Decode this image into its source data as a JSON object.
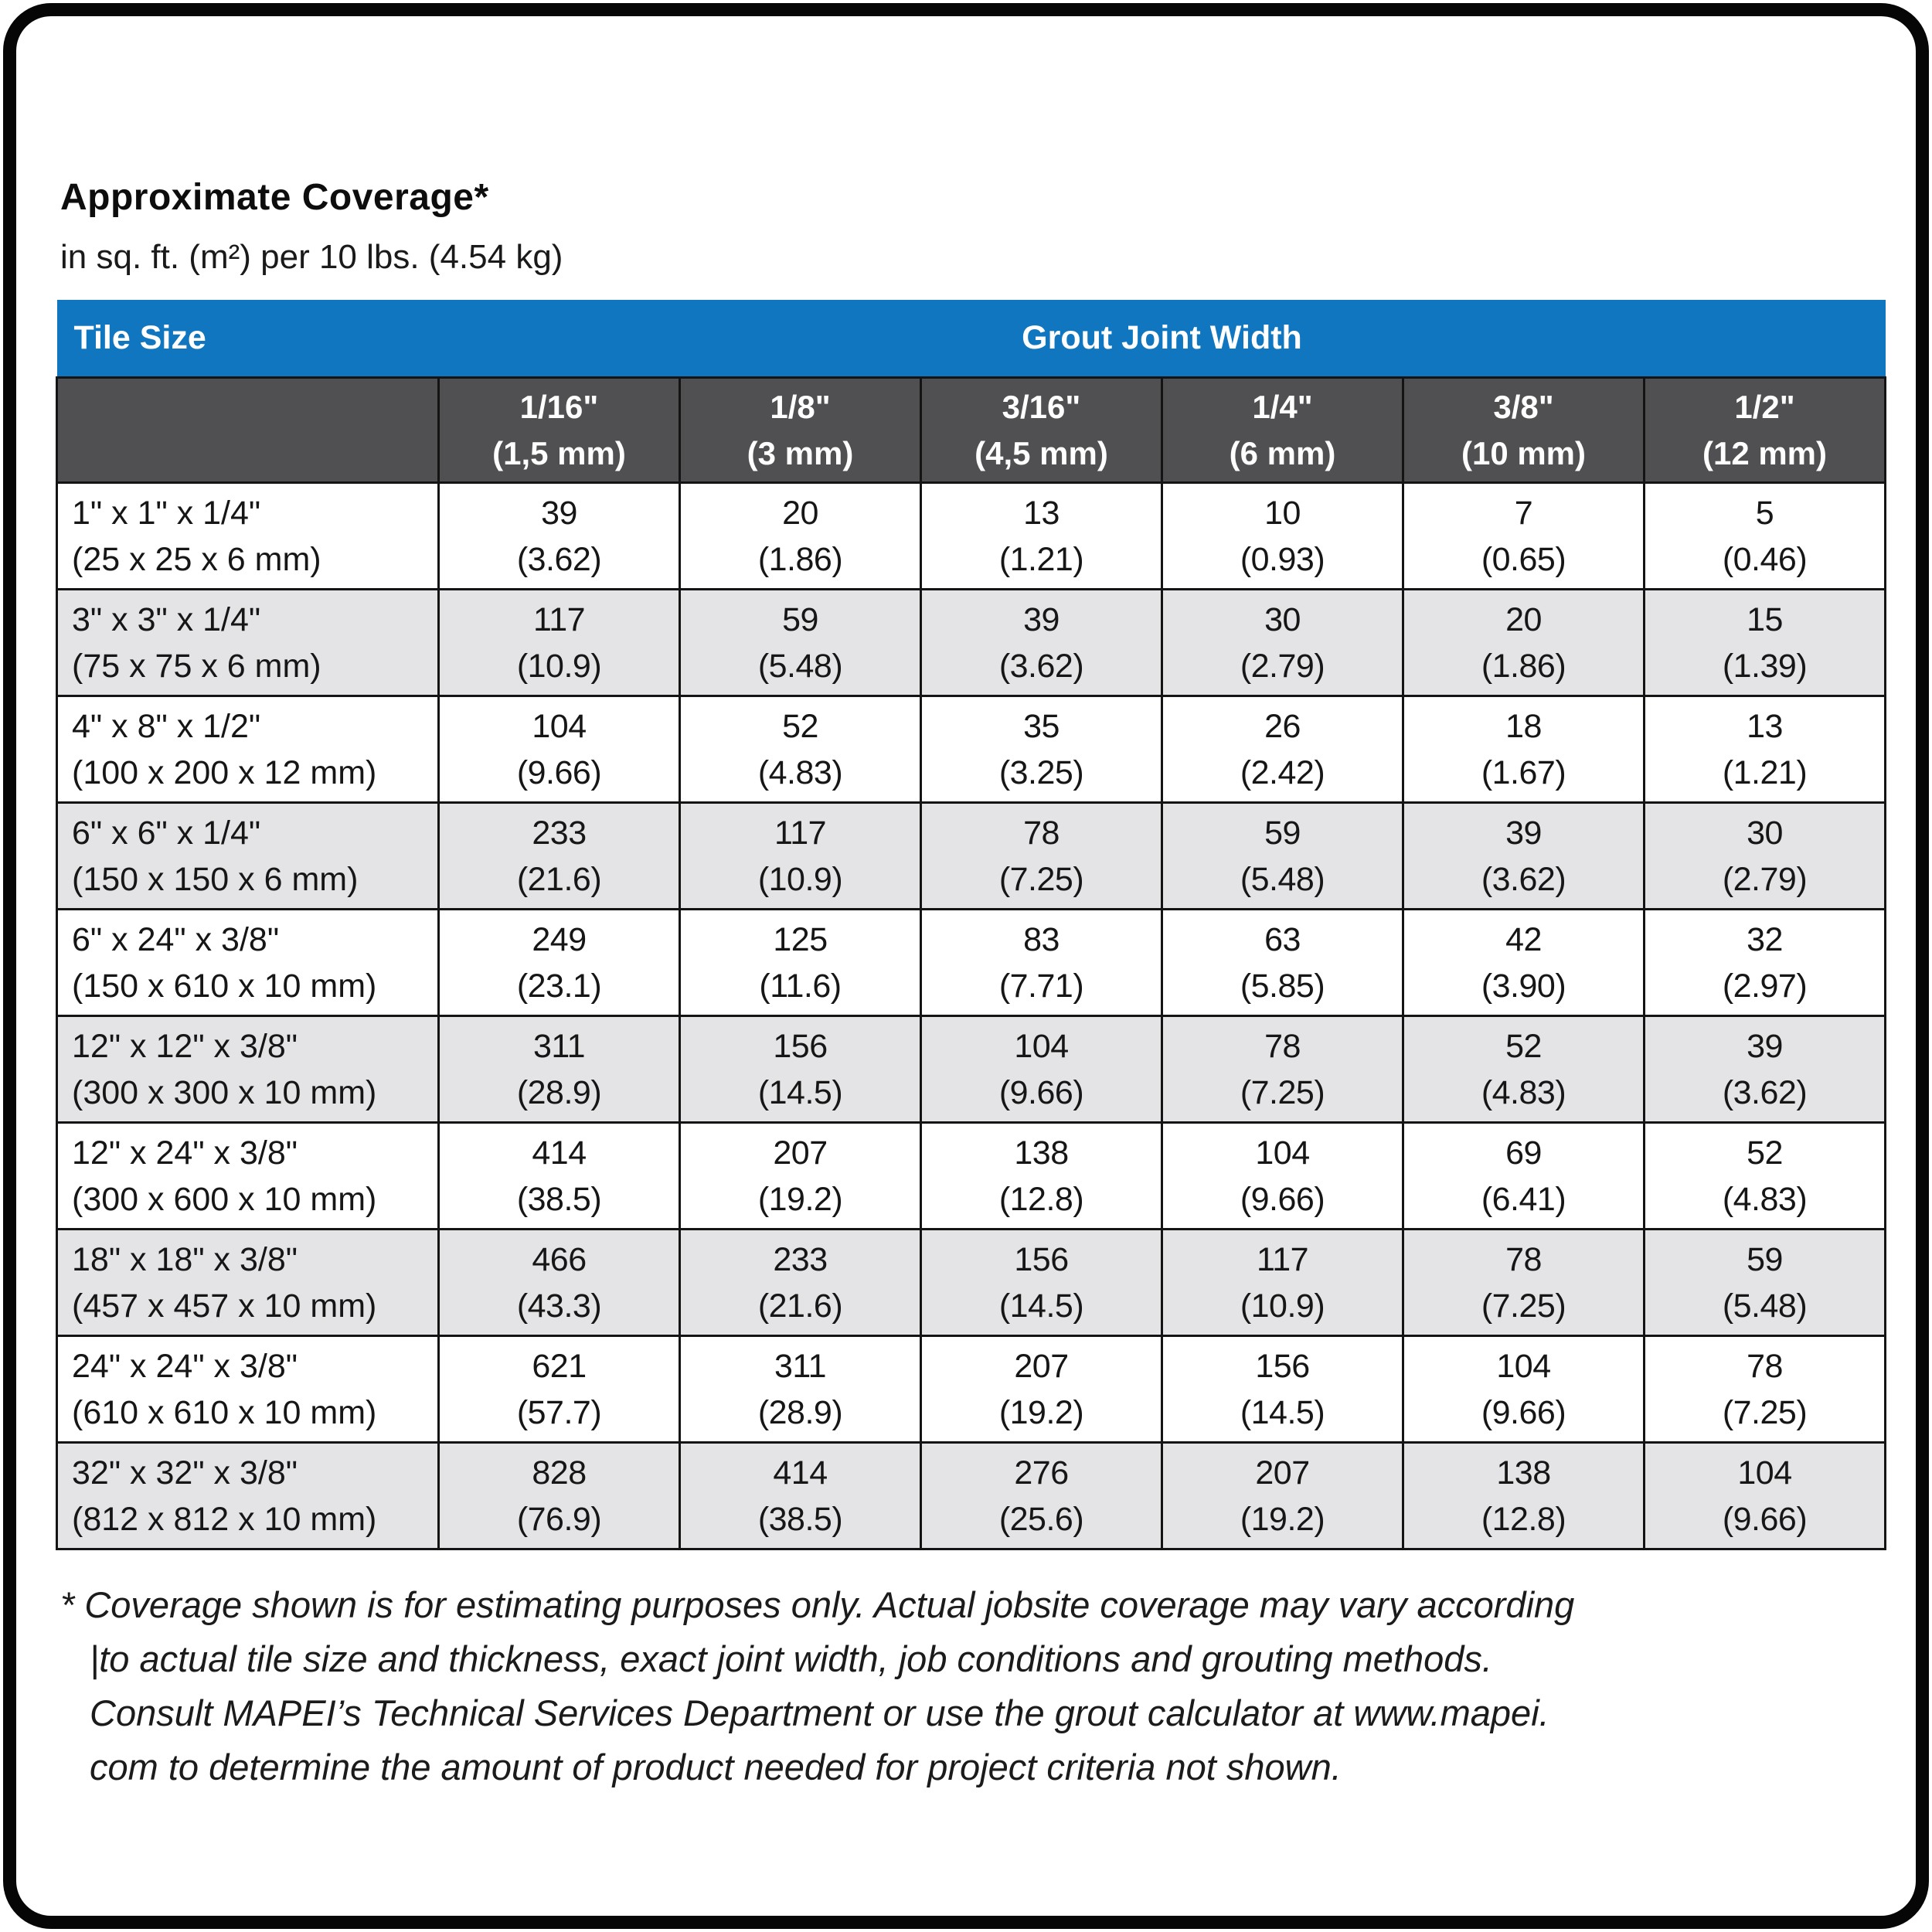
{
  "colors": {
    "header_blue": "#1076bf",
    "header_dark_gray": "#504f51",
    "row_alt_gray": "#e4e4e6",
    "grid_line": "#141414",
    "text": "#161616"
  },
  "heading": {
    "title": "Approximate Coverage*",
    "subtitle": "in sq. ft. (m²) per 10 lbs. (4.54 kg)"
  },
  "table": {
    "tile_size_header": "Tile Size",
    "grout_joint_header": "Grout Joint Width",
    "joint_columns": [
      {
        "inches": "1/16\"",
        "mm": "(1,5 mm)"
      },
      {
        "inches": "1/8\"",
        "mm": "(3 mm)"
      },
      {
        "inches": "3/16\"",
        "mm": "(4,5 mm)"
      },
      {
        "inches": "1/4\"",
        "mm": "(6 mm)"
      },
      {
        "inches": "3/8\"",
        "mm": "(10 mm)"
      },
      {
        "inches": "1/2\"",
        "mm": "(12 mm)"
      }
    ],
    "rows": [
      {
        "tile_in": "1\" x 1\" x 1/4\"",
        "tile_mm": "(25 x 25 x 6 mm)",
        "coverage": [
          {
            "sqft": "39",
            "m2": "(3.62)"
          },
          {
            "sqft": "20",
            "m2": "(1.86)"
          },
          {
            "sqft": "13",
            "m2": "(1.21)"
          },
          {
            "sqft": "10",
            "m2": "(0.93)"
          },
          {
            "sqft": "7",
            "m2": "(0.65)"
          },
          {
            "sqft": "5",
            "m2": "(0.46)"
          }
        ]
      },
      {
        "tile_in": "3\" x 3\" x 1/4\"",
        "tile_mm": "(75 x 75 x 6 mm)",
        "coverage": [
          {
            "sqft": "117",
            "m2": "(10.9)"
          },
          {
            "sqft": "59",
            "m2": "(5.48)"
          },
          {
            "sqft": "39",
            "m2": "(3.62)"
          },
          {
            "sqft": "30",
            "m2": "(2.79)"
          },
          {
            "sqft": "20",
            "m2": "(1.86)"
          },
          {
            "sqft": "15",
            "m2": "(1.39)"
          }
        ]
      },
      {
        "tile_in": "4\" x 8\" x 1/2\"",
        "tile_mm": "(100 x 200 x 12 mm)",
        "coverage": [
          {
            "sqft": "104",
            "m2": "(9.66)"
          },
          {
            "sqft": "52",
            "m2": "(4.83)"
          },
          {
            "sqft": "35",
            "m2": "(3.25)"
          },
          {
            "sqft": "26",
            "m2": "(2.42)"
          },
          {
            "sqft": "18",
            "m2": "(1.67)"
          },
          {
            "sqft": "13",
            "m2": "(1.21)"
          }
        ]
      },
      {
        "tile_in": "6\" x 6\" x 1/4\"",
        "tile_mm": "(150 x 150 x 6 mm)",
        "coverage": [
          {
            "sqft": "233",
            "m2": "(21.6)"
          },
          {
            "sqft": "117",
            "m2": "(10.9)"
          },
          {
            "sqft": "78",
            "m2": "(7.25)"
          },
          {
            "sqft": "59",
            "m2": "(5.48)"
          },
          {
            "sqft": "39",
            "m2": "(3.62)"
          },
          {
            "sqft": "30",
            "m2": "(2.79)"
          }
        ]
      },
      {
        "tile_in": "6\" x 24\" x 3/8\"",
        "tile_mm": "(150 x 610 x 10 mm)",
        "coverage": [
          {
            "sqft": "249",
            "m2": "(23.1)"
          },
          {
            "sqft": "125",
            "m2": "(11.6)"
          },
          {
            "sqft": "83",
            "m2": "(7.71)"
          },
          {
            "sqft": "63",
            "m2": "(5.85)"
          },
          {
            "sqft": "42",
            "m2": "(3.90)"
          },
          {
            "sqft": "32",
            "m2": "(2.97)"
          }
        ]
      },
      {
        "tile_in": "12\" x 12\" x 3/8\"",
        "tile_mm": "(300 x 300 x 10 mm)",
        "coverage": [
          {
            "sqft": "311",
            "m2": "(28.9)"
          },
          {
            "sqft": "156",
            "m2": "(14.5)"
          },
          {
            "sqft": "104",
            "m2": "(9.66)"
          },
          {
            "sqft": "78",
            "m2": "(7.25)"
          },
          {
            "sqft": "52",
            "m2": "(4.83)"
          },
          {
            "sqft": "39",
            "m2": "(3.62)"
          }
        ]
      },
      {
        "tile_in": "12\" x 24\" x 3/8\"",
        "tile_mm": "(300 x 600 x 10 mm)",
        "coverage": [
          {
            "sqft": "414",
            "m2": "(38.5)"
          },
          {
            "sqft": "207",
            "m2": "(19.2)"
          },
          {
            "sqft": "138",
            "m2": "(12.8)"
          },
          {
            "sqft": "104",
            "m2": "(9.66)"
          },
          {
            "sqft": "69",
            "m2": "(6.41)"
          },
          {
            "sqft": "52",
            "m2": "(4.83)"
          }
        ]
      },
      {
        "tile_in": "18\" x 18\" x 3/8\"",
        "tile_mm": "(457 x 457 x 10 mm)",
        "coverage": [
          {
            "sqft": "466",
            "m2": "(43.3)"
          },
          {
            "sqft": "233",
            "m2": "(21.6)"
          },
          {
            "sqft": "156",
            "m2": "(14.5)"
          },
          {
            "sqft": "117",
            "m2": "(10.9)"
          },
          {
            "sqft": "78",
            "m2": "(7.25)"
          },
          {
            "sqft": "59",
            "m2": "(5.48)"
          }
        ]
      },
      {
        "tile_in": "24\" x 24\" x 3/8\"",
        "tile_mm": "(610 x 610 x 10 mm)",
        "coverage": [
          {
            "sqft": "621",
            "m2": "(57.7)"
          },
          {
            "sqft": "311",
            "m2": "(28.9)"
          },
          {
            "sqft": "207",
            "m2": "(19.2)"
          },
          {
            "sqft": "156",
            "m2": "(14.5)"
          },
          {
            "sqft": "104",
            "m2": "(9.66)"
          },
          {
            "sqft": "78",
            "m2": "(7.25)"
          }
        ]
      },
      {
        "tile_in": "32\" x 32\" x 3/8\"",
        "tile_mm": "(812 x 812 x 10 mm)",
        "coverage": [
          {
            "sqft": "828",
            "m2": "(76.9)"
          },
          {
            "sqft": "414",
            "m2": "(38.5)"
          },
          {
            "sqft": "276",
            "m2": "(25.6)"
          },
          {
            "sqft": "207",
            "m2": "(19.2)"
          },
          {
            "sqft": "138",
            "m2": "(12.8)"
          },
          {
            "sqft": "104",
            "m2": "(9.66)"
          }
        ]
      }
    ]
  },
  "footnote": {
    "lines": [
      "* Coverage shown is for estimating purposes only. Actual jobsite coverage may vary according",
      "|to actual tile size and thickness, exact joint width, job conditions and grouting methods.",
      "Consult MAPEI’s Technical Services Department or use the grout calculator at www.mapei.",
      "com to determine the amount of product needed for project criteria not shown."
    ]
  }
}
